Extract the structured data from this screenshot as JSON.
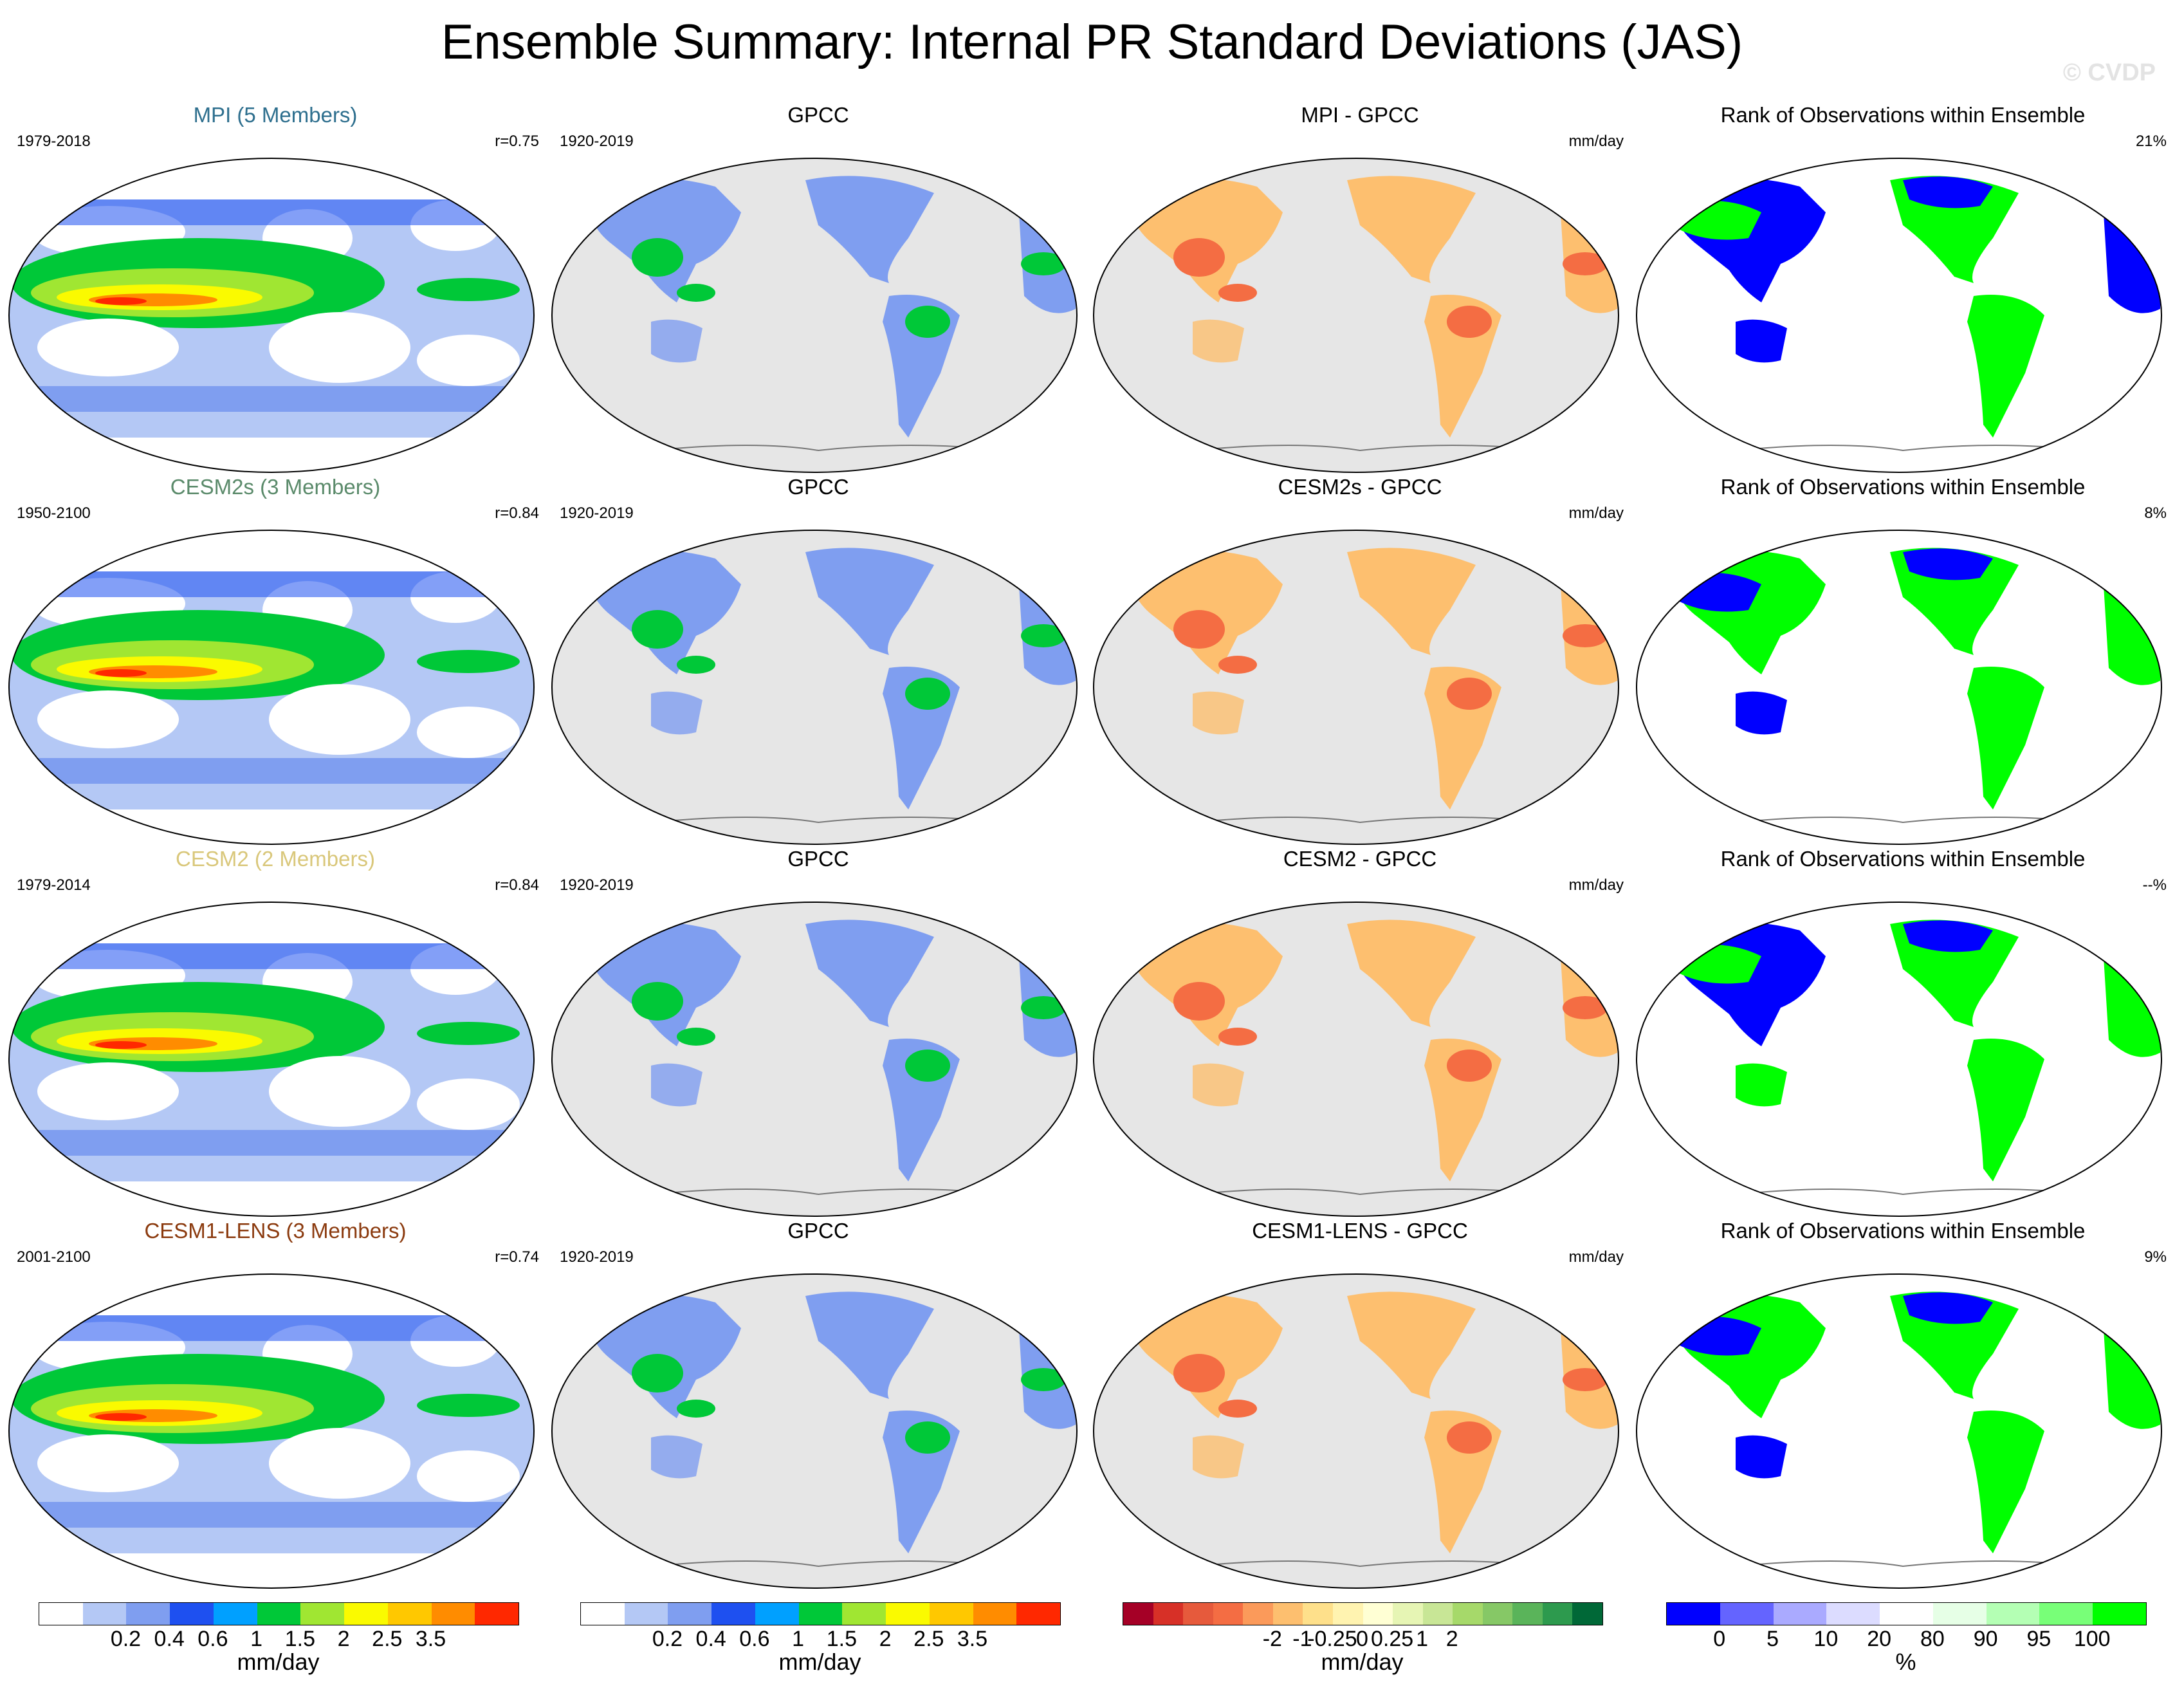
{
  "title": "Ensemble Summary: Internal PR Standard Deviations (JAS)",
  "watermark": "© CVDP",
  "rows": [
    {
      "model": "MPI (5 Members)",
      "model_color": "#2e6f8e",
      "model_years": "1979-2018",
      "r": "r=0.75",
      "obs": "GPCC",
      "obs_years": "1920-2019",
      "diff_title": "MPI - GPCC",
      "diff_units": "mm/day",
      "rank_title": "Rank of Observations within Ensemble",
      "rank_pct": "21%"
    },
    {
      "model": "CESM2s (3 Members)",
      "model_color": "#5a8a6a",
      "model_years": "1950-2100",
      "r": "r=0.84",
      "obs": "GPCC",
      "obs_years": "1920-2019",
      "diff_title": "CESM2s - GPCC",
      "diff_units": "mm/day",
      "rank_title": "Rank of Observations within Ensemble",
      "rank_pct": "8%"
    },
    {
      "model": "CESM2 (2 Members)",
      "model_color": "#d9c77a",
      "model_years": "1979-2014",
      "r": "r=0.84",
      "obs": "GPCC",
      "obs_years": "1920-2019",
      "diff_title": "CESM2 - GPCC",
      "diff_units": "mm/day",
      "rank_title": "Rank of Observations within Ensemble",
      "rank_pct": "--%"
    },
    {
      "model": "CESM1-LENS (3 Members)",
      "model_color": "#8b3a0e",
      "model_years": "2001-2100",
      "r": "r=0.74",
      "obs": "GPCC",
      "obs_years": "1920-2019",
      "diff_title": "CESM1-LENS - GPCC",
      "diff_units": "mm/day",
      "rank_title": "Rank of Observations within Ensemble",
      "rank_pct": "9%"
    }
  ],
  "colorbars": {
    "stddev": {
      "colors": [
        "#ffffff",
        "#b4c8f5",
        "#7f9ef0",
        "#1e50f0",
        "#00a0ff",
        "#00c838",
        "#a0e632",
        "#fafa00",
        "#ffc800",
        "#ff8c00",
        "#ff2800"
      ],
      "ticks": [
        "0.2",
        "0.4",
        "0.6",
        "1",
        "1.5",
        "2",
        "2.5",
        "3.5"
      ],
      "label": "mm/day"
    },
    "diff": {
      "colors": [
        "#a50026",
        "#d73027",
        "#e65a3c",
        "#f46d43",
        "#fb9a5a",
        "#fdbf6f",
        "#fee08b",
        "#fff3b0",
        "#ffffd4",
        "#e6f5b4",
        "#c8e696",
        "#a6d96a",
        "#86c866",
        "#5ab45a",
        "#2d9a4e",
        "#006837"
      ],
      "ticks": [
        "-2",
        "-1",
        "-0.25",
        "0",
        "0.25",
        "1",
        "2"
      ],
      "label": "mm/day"
    },
    "rank": {
      "colors": [
        "#0000ff",
        "#6464ff",
        "#aaaaff",
        "#dcdcff",
        "#ffffff",
        "#e6ffe6",
        "#b4ffb4",
        "#78ff78",
        "#00ff00"
      ],
      "ticks": [
        "0",
        "5",
        "10",
        "20",
        "80",
        "90",
        "95",
        "100"
      ],
      "label": "%"
    }
  }
}
